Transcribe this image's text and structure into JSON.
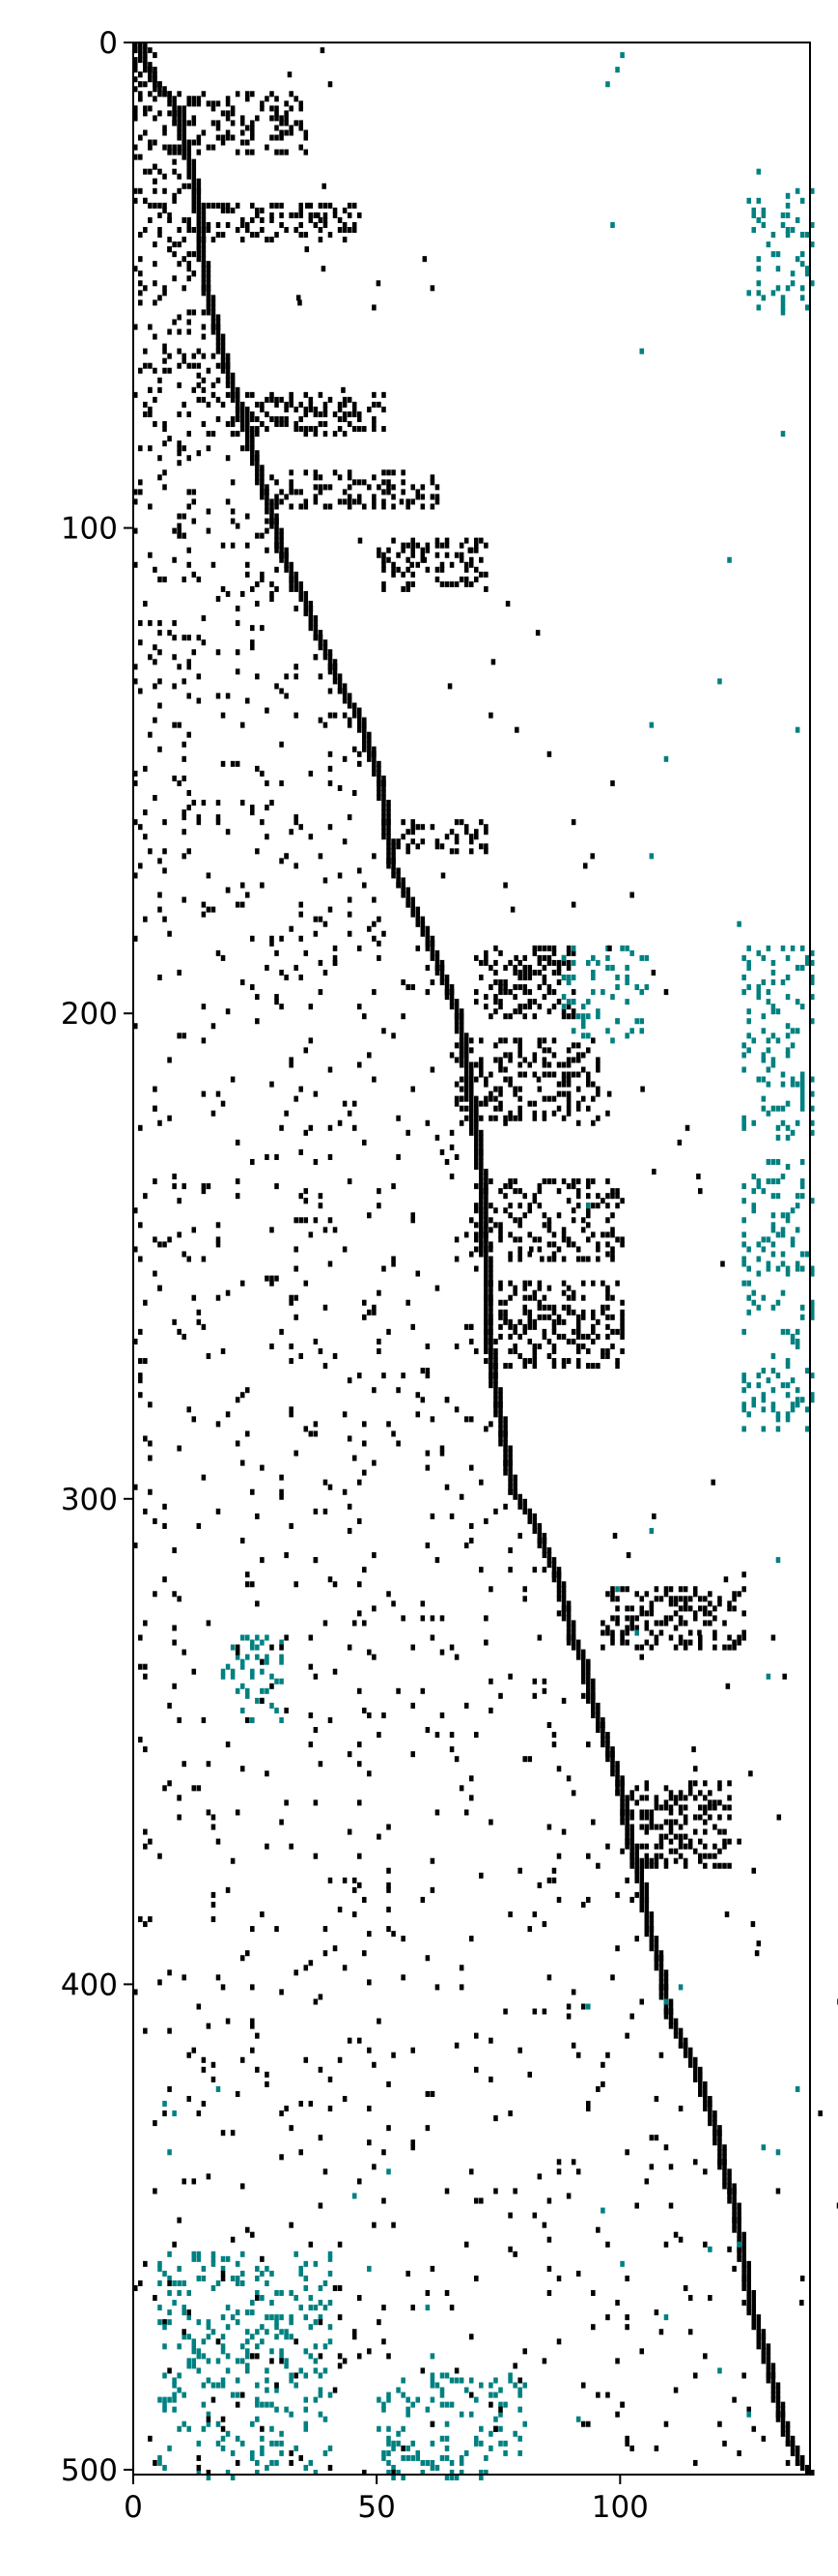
{
  "chart_data": {
    "type": "heatmap",
    "title": "",
    "xlabel": "",
    "ylabel": "",
    "xlim": [
      0,
      139
    ],
    "ylim": [
      501,
      0
    ],
    "xticks": [
      0,
      50,
      100
    ],
    "yticks": [
      0,
      100,
      200,
      300,
      400,
      500
    ],
    "grid": false,
    "legend": "none",
    "colors": {
      "primary": "#000000",
      "secondary": "#008080"
    },
    "diagonal_path": [
      [
        0,
        0
      ],
      [
        2,
        5
      ],
      [
        4,
        8
      ],
      [
        6,
        10
      ],
      [
        8,
        14
      ],
      [
        10,
        22
      ],
      [
        12,
        30
      ],
      [
        13,
        40
      ],
      [
        14,
        50
      ],
      [
        16,
        58
      ],
      [
        18,
        66
      ],
      [
        20,
        72
      ],
      [
        22,
        78
      ],
      [
        24,
        85
      ],
      [
        26,
        92
      ],
      [
        28,
        98
      ],
      [
        30,
        105
      ],
      [
        32,
        110
      ],
      [
        35,
        116
      ],
      [
        37,
        122
      ],
      [
        40,
        128
      ],
      [
        42,
        133
      ],
      [
        44,
        136
      ],
      [
        46,
        140
      ],
      [
        48,
        146
      ],
      [
        50,
        152
      ],
      [
        51,
        160
      ],
      [
        52,
        168
      ],
      [
        54,
        173
      ],
      [
        56,
        177
      ],
      [
        58,
        181
      ],
      [
        60,
        185
      ],
      [
        62,
        190
      ],
      [
        64,
        195
      ],
      [
        66,
        200
      ],
      [
        67,
        208
      ],
      [
        68,
        214
      ],
      [
        69,
        220
      ],
      [
        70,
        228
      ],
      [
        71,
        236
      ],
      [
        71,
        245
      ],
      [
        72,
        255
      ],
      [
        72,
        265
      ],
      [
        73,
        274
      ],
      [
        74,
        280
      ],
      [
        75,
        286
      ],
      [
        76,
        292
      ],
      [
        77,
        298
      ],
      [
        80,
        302
      ],
      [
        83,
        308
      ],
      [
        86,
        315
      ],
      [
        88,
        322
      ],
      [
        89,
        328
      ],
      [
        92,
        334
      ],
      [
        93,
        340
      ],
      [
        95,
        346
      ],
      [
        97,
        352
      ],
      [
        99,
        358
      ],
      [
        100,
        364
      ],
      [
        101,
        370
      ],
      [
        103,
        376
      ],
      [
        104,
        382
      ],
      [
        105,
        388
      ],
      [
        107,
        394
      ],
      [
        108,
        400
      ],
      [
        109,
        405
      ],
      [
        112,
        412
      ],
      [
        115,
        418
      ],
      [
        117,
        424
      ],
      [
        119,
        430
      ],
      [
        120,
        436
      ],
      [
        122,
        442
      ],
      [
        123,
        448
      ],
      [
        124,
        454
      ],
      [
        125,
        460
      ],
      [
        126,
        466
      ],
      [
        128,
        472
      ],
      [
        130,
        480
      ],
      [
        132,
        488
      ],
      [
        134,
        494
      ],
      [
        136,
        498
      ],
      [
        138,
        500
      ]
    ],
    "dense_blocks": [
      {
        "x": [
          8,
          35
        ],
        "y": [
          10,
          22
        ],
        "color": "primary"
      },
      {
        "x": [
          14,
          46
        ],
        "y": [
          33,
          40
        ],
        "color": "primary"
      },
      {
        "x": [
          20,
          52
        ],
        "y": [
          72,
          80
        ],
        "color": "primary"
      },
      {
        "x": [
          28,
          62
        ],
        "y": [
          88,
          95
        ],
        "color": "primary"
      },
      {
        "x": [
          50,
          72
        ],
        "y": [
          102,
          112
        ],
        "color": "primary"
      },
      {
        "x": [
          70,
          90
        ],
        "y": [
          186,
          200
        ],
        "color": "primary"
      },
      {
        "x": [
          66,
          95
        ],
        "y": [
          205,
          222
        ],
        "color": "primary"
      },
      {
        "x": [
          70,
          100
        ],
        "y": [
          234,
          250
        ],
        "color": "primary"
      },
      {
        "x": [
          72,
          100
        ],
        "y": [
          255,
          272
        ],
        "color": "primary"
      },
      {
        "x": [
          96,
          125
        ],
        "y": [
          318,
          330
        ],
        "color": "primary"
      },
      {
        "x": [
          102,
          122
        ],
        "y": [
          358,
          375
        ],
        "color": "primary"
      },
      {
        "x": [
          54,
          72
        ],
        "y": [
          160,
          166
        ],
        "color": "primary"
      },
      {
        "x": [
          88,
          105
        ],
        "y": [
          186,
          205
        ],
        "color": "secondary"
      },
      {
        "x": [
          125,
          139
        ],
        "y": [
          186,
          225
        ],
        "color": "secondary"
      },
      {
        "x": [
          125,
          139
        ],
        "y": [
          230,
          285
        ],
        "color": "secondary"
      },
      {
        "x": [
          5,
          40
        ],
        "y": [
          455,
          501
        ],
        "color": "secondary"
      },
      {
        "x": [
          50,
          80
        ],
        "y": [
          480,
          501
        ],
        "color": "secondary"
      },
      {
        "x": [
          18,
          30
        ],
        "y": [
          328,
          345
        ],
        "color": "secondary"
      },
      {
        "x": [
          126,
          139
        ],
        "y": [
          30,
          55
        ],
        "color": "secondary"
      }
    ]
  }
}
